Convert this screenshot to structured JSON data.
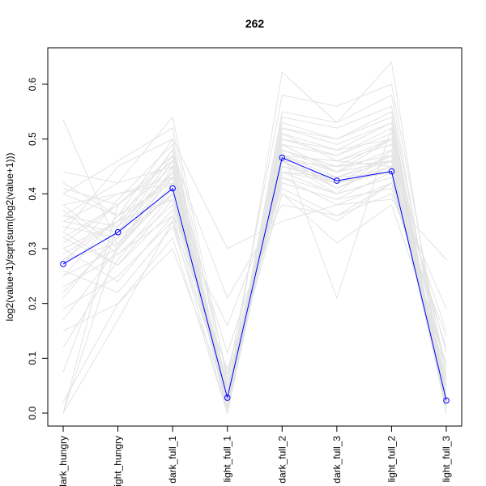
{
  "chart_data": {
    "type": "line",
    "title": "262",
    "xlabel": "",
    "ylabel": "log2(value+1)/sqrt(sum(log2(value+1)))",
    "categories": [
      "dark_hungry",
      "light_hungry",
      "dark_full_1",
      "light_full_1",
      "dark_full_2",
      "dark_full_3",
      "light_full_2",
      "light_full_3"
    ],
    "y_ticks": [
      "0.0",
      "0.1",
      "0.2",
      "0.3",
      "0.4",
      "0.5",
      "0.6"
    ],
    "ylim": [
      -0.02,
      0.665
    ],
    "grid": false,
    "colors": {
      "highlight": "#0000ff",
      "background_lines": "#e3e3e3",
      "axis": "#000000"
    },
    "series": [
      {
        "values": [
          0.272,
          0.33,
          0.41,
          0.028,
          0.466,
          0.424,
          0.441,
          0.023
        ]
      }
    ],
    "background_series": [
      [
        0.535,
        0.305,
        0.448,
        0.03,
        0.622,
        0.53,
        0.64,
        0.02
      ],
      [
        0.44,
        0.42,
        0.54,
        0.06,
        0.58,
        0.56,
        0.6,
        0.06
      ],
      [
        0.42,
        0.36,
        0.5,
        0.02,
        0.54,
        0.52,
        0.56,
        0.04
      ],
      [
        0.4,
        0.46,
        0.52,
        0.04,
        0.5,
        0.47,
        0.52,
        0.08
      ],
      [
        0.38,
        0.3,
        0.44,
        0.01,
        0.49,
        0.44,
        0.5,
        0.03
      ],
      [
        0.36,
        0.34,
        0.48,
        0.07,
        0.46,
        0.4,
        0.48,
        0.11
      ],
      [
        0.35,
        0.4,
        0.42,
        0.02,
        0.48,
        0.45,
        0.46,
        0.02
      ],
      [
        0.33,
        0.27,
        0.39,
        0.05,
        0.43,
        0.38,
        0.42,
        0.06
      ],
      [
        0.32,
        0.38,
        0.46,
        0.0,
        0.52,
        0.5,
        0.54,
        0.01
      ],
      [
        0.3,
        0.24,
        0.36,
        0.03,
        0.45,
        0.42,
        0.44,
        0.05
      ],
      [
        0.29,
        0.35,
        0.43,
        0.11,
        0.41,
        0.36,
        0.4,
        0.14
      ],
      [
        0.28,
        0.31,
        0.4,
        0.01,
        0.47,
        0.43,
        0.47,
        0.02
      ],
      [
        0.26,
        0.22,
        0.34,
        0.04,
        0.44,
        0.4,
        0.43,
        0.07
      ],
      [
        0.25,
        0.36,
        0.45,
        0.02,
        0.5,
        0.48,
        0.5,
        0.03
      ],
      [
        0.23,
        0.29,
        0.38,
        0.06,
        0.42,
        0.39,
        0.41,
        0.09
      ],
      [
        0.21,
        0.33,
        0.47,
        0.0,
        0.47,
        0.46,
        0.49,
        0.0
      ],
      [
        0.19,
        0.25,
        0.35,
        0.08,
        0.4,
        0.35,
        0.42,
        0.12
      ],
      [
        0.17,
        0.3,
        0.42,
        0.02,
        0.48,
        0.44,
        0.46,
        0.04
      ],
      [
        0.15,
        0.2,
        0.3,
        0.03,
        0.43,
        0.4,
        0.43,
        0.06
      ],
      [
        0.12,
        0.28,
        0.4,
        0.01,
        0.46,
        0.42,
        0.45,
        0.02
      ],
      [
        0.075,
        0.34,
        0.44,
        0.05,
        0.4,
        0.31,
        0.38,
        0.09
      ],
      [
        0.0,
        0.38,
        0.47,
        0.0,
        0.46,
        0.45,
        0.47,
        0.0
      ],
      [
        0.0,
        0.31,
        0.43,
        0.02,
        0.44,
        0.43,
        0.44,
        0.01
      ],
      [
        0.0,
        0.17,
        0.35,
        0.0,
        0.48,
        0.21,
        0.52,
        0.0
      ],
      [
        0.02,
        0.2,
        0.32,
        0.0,
        0.47,
        0.46,
        0.45,
        0.03
      ],
      [
        0.33,
        0.45,
        0.5,
        0.3,
        0.35,
        0.38,
        0.39,
        0.28
      ],
      [
        0.31,
        0.38,
        0.47,
        0.21,
        0.38,
        0.36,
        0.42,
        0.19
      ],
      [
        0.37,
        0.29,
        0.36,
        0.16,
        0.42,
        0.39,
        0.44,
        0.15
      ],
      [
        0.41,
        0.38,
        0.46,
        0.01,
        0.51,
        0.46,
        0.5,
        0.01
      ],
      [
        0.28,
        0.35,
        0.48,
        0.01,
        0.55,
        0.53,
        0.58,
        0.02
      ],
      [
        0.34,
        0.32,
        0.4,
        0.04,
        0.46,
        0.41,
        0.45,
        0.04
      ],
      [
        0.36,
        0.42,
        0.45,
        0.0,
        0.49,
        0.47,
        0.51,
        0.0
      ],
      [
        0.3,
        0.35,
        0.39,
        0.03,
        0.47,
        0.44,
        0.48,
        0.03
      ],
      [
        0.25,
        0.3,
        0.41,
        0.02,
        0.45,
        0.43,
        0.46,
        0.05
      ],
      [
        0.38,
        0.4,
        0.43,
        0.0,
        0.52,
        0.49,
        0.53,
        0.01
      ],
      [
        0.32,
        0.27,
        0.37,
        0.06,
        0.44,
        0.42,
        0.47,
        0.08
      ],
      [
        0.27,
        0.39,
        0.49,
        0.01,
        0.53,
        0.5,
        0.55,
        0.0
      ],
      [
        0.35,
        0.33,
        0.44,
        0.02,
        0.48,
        0.45,
        0.5,
        0.02
      ],
      [
        0.4,
        0.36,
        0.42,
        0.03,
        0.47,
        0.41,
        0.46,
        0.03
      ],
      [
        0.22,
        0.32,
        0.46,
        0.0,
        0.51,
        0.48,
        0.53,
        0.0
      ]
    ]
  }
}
